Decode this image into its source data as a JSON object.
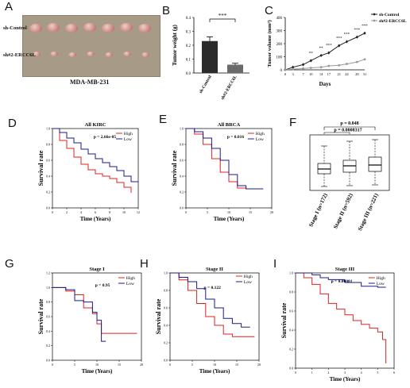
{
  "panels": {
    "A": {
      "letter": "A",
      "row_labels": [
        "sh-Control",
        "sh#2-ERCC6L"
      ],
      "caption": "MDA-MB-231"
    },
    "B": {
      "letter": "B",
      "significance": "***"
    },
    "C": {
      "letter": "C",
      "legend": [
        "sh-Control",
        "sh#2-ERCC6L"
      ],
      "significance": [
        "**",
        "**",
        "***",
        "***",
        "***",
        "***",
        "***"
      ]
    },
    "D": {
      "letter": "D"
    },
    "E": {
      "letter": "E"
    },
    "F": {
      "letter": "F",
      "pvals": [
        "p = 0.048",
        "p = 0.0008317"
      ]
    },
    "G": {
      "letter": "G"
    },
    "H": {
      "letter": "H"
    },
    "I": {
      "letter": "I"
    }
  },
  "chart_data": [
    {
      "id": "B",
      "type": "bar",
      "categories": [
        "sh-Control",
        "sh#2-ERCC6L"
      ],
      "values": [
        0.23,
        0.06
      ],
      "errors": [
        0.03,
        0.01
      ],
      "ylabel": "Tumor weight (g)",
      "ylim": [
        0,
        0.4
      ],
      "yticks": [
        "0.0",
        "0.1",
        "0.2",
        "0.3",
        "0.4"
      ],
      "colors": [
        "#2b2b2b",
        "#6b6b6b"
      ]
    },
    {
      "id": "C",
      "type": "line",
      "x": [
        0,
        3,
        7,
        10,
        14,
        17,
        21,
        24,
        28,
        31
      ],
      "xticklabels": [
        "0",
        "3",
        "7",
        "10",
        "14",
        "17",
        "21",
        "24",
        "28",
        "31"
      ],
      "series": [
        {
          "name": "sh-Control",
          "values": [
            0,
            20,
            40,
            70,
            110,
            130,
            185,
            215,
            250,
            280
          ],
          "color": "#222222"
        },
        {
          "name": "sh#2-ERCC6L",
          "values": [
            0,
            5,
            10,
            15,
            20,
            30,
            35,
            45,
            60,
            80
          ],
          "color": "#999999"
        }
      ],
      "xlabel": "Days",
      "ylabel": "Tumor volume (mm³)",
      "ylim": [
        0,
        400
      ],
      "yticks": [
        "0",
        "100",
        "200",
        "300",
        "400"
      ]
    },
    {
      "id": "D",
      "type": "line",
      "title": "All KIRC",
      "annotation": "p = 2.66e-05",
      "xlabel": "Time (Years)",
      "ylabel": "Survival rate",
      "xlim": [
        0,
        12
      ],
      "xticks": [
        "0",
        "2",
        "4",
        "6",
        "8",
        "10",
        "12"
      ],
      "ylim": [
        0,
        1
      ],
      "yticks": [
        "0.0",
        "0.2",
        "0.4",
        "0.6",
        "0.8",
        "1.0"
      ],
      "series": [
        {
          "name": "High",
          "color": "#e02020",
          "x": [
            0,
            1,
            2,
            3,
            4,
            5,
            6,
            7,
            8,
            9,
            10,
            11
          ],
          "values": [
            1,
            0.85,
            0.75,
            0.64,
            0.55,
            0.48,
            0.43,
            0.4,
            0.37,
            0.32,
            0.26,
            0.19
          ]
        },
        {
          "name": "Low",
          "color": "#1a1a8c",
          "x": [
            0,
            1,
            2,
            3,
            4,
            5,
            6,
            7,
            8,
            9,
            10,
            11,
            12
          ],
          "values": [
            1,
            0.95,
            0.88,
            0.82,
            0.74,
            0.68,
            0.62,
            0.57,
            0.52,
            0.47,
            0.4,
            0.33,
            0.33
          ]
        }
      ]
    },
    {
      "id": "E",
      "type": "line",
      "title": "All BRCA",
      "annotation": "p = 0.016",
      "xlabel": "Time (Years)",
      "ylabel": "Survival rate",
      "xlim": [
        0,
        20
      ],
      "xticks": [
        "0",
        "5",
        "10",
        "15",
        "20"
      ],
      "ylim": [
        0,
        1
      ],
      "yticks": [
        "0.0",
        "0.2",
        "0.4",
        "0.6",
        "0.8",
        "1.0"
      ],
      "series": [
        {
          "name": "High",
          "color": "#e02020",
          "x": [
            0,
            2,
            4,
            6,
            8,
            10,
            12,
            14,
            16,
            18
          ],
          "values": [
            1,
            0.93,
            0.8,
            0.62,
            0.45,
            0.33,
            0.25,
            0.24,
            0.24,
            0.24
          ]
        },
        {
          "name": "Low",
          "color": "#1a1a8c",
          "x": [
            0,
            2,
            4,
            6,
            8,
            10,
            12,
            14,
            16,
            18
          ],
          "values": [
            1,
            0.96,
            0.88,
            0.75,
            0.6,
            0.42,
            0.28,
            0.24,
            0.24,
            0.24
          ]
        }
      ]
    },
    {
      "id": "F",
      "type": "box",
      "categories": [
        "Stage I (n=172)",
        "Stage II (n=592)",
        "Stage III (n=221)"
      ],
      "boxes": [
        {
          "whisker_low": -2.5,
          "q1": -0.9,
          "median": -0.3,
          "q3": 0.4,
          "whisker_high": 2.6
        },
        {
          "whisker_low": -2.4,
          "q1": -0.7,
          "median": 0.1,
          "q3": 0.8,
          "whisker_high": 3.2
        },
        {
          "whisker_low": -2.3,
          "q1": -0.6,
          "median": 0.2,
          "q3": 1.2,
          "whisker_high": 3.4
        }
      ],
      "ylim": [
        -3,
        4
      ]
    },
    {
      "id": "G",
      "type": "line",
      "title": "Stage I",
      "annotation": "p = 0.95",
      "xlabel": "Time (Years)",
      "ylabel": "Survival rate",
      "xlim": [
        0,
        20
      ],
      "xticks": [
        "0",
        "5",
        "10",
        "15",
        "20"
      ],
      "ylim": [
        0,
        1.2
      ],
      "yticks": [
        "0.0",
        "0.2",
        "0.4",
        "0.6",
        "0.8",
        "1.0",
        "1.2"
      ],
      "series": [
        {
          "name": "High",
          "color": "#e02020",
          "x": [
            0,
            3,
            5,
            7,
            9,
            10,
            11,
            14,
            19
          ],
          "values": [
            1,
            0.95,
            0.9,
            0.72,
            0.64,
            0.5,
            0.37,
            0.37,
            0.37
          ]
        },
        {
          "name": "Low",
          "color": "#1a1a8c",
          "x": [
            0,
            3,
            5,
            7,
            9,
            10,
            11,
            12
          ],
          "values": [
            1,
            0.97,
            0.82,
            0.8,
            0.66,
            0.55,
            0.26,
            0.26
          ]
        }
      ]
    },
    {
      "id": "H",
      "type": "line",
      "title": "Stage II",
      "annotation": "p = 0.122",
      "xlabel": "Time (Years)",
      "ylabel": "Survival rate",
      "xlim": [
        0,
        20
      ],
      "xticks": [
        "0",
        "5",
        "10",
        "15",
        "20"
      ],
      "ylim": [
        0,
        1
      ],
      "yticks": [
        "0.0",
        "0.2",
        "0.4",
        "0.6",
        "0.8",
        "1.0"
      ],
      "series": [
        {
          "name": "High",
          "color": "#e02020",
          "x": [
            0,
            2,
            4,
            6,
            8,
            10,
            12,
            14,
            16,
            19
          ],
          "values": [
            1,
            0.92,
            0.8,
            0.65,
            0.5,
            0.4,
            0.3,
            0.27,
            0.27,
            0.27
          ]
        },
        {
          "name": "Low",
          "color": "#1a1a8c",
          "x": [
            0,
            2,
            4,
            6,
            8,
            10,
            12,
            14,
            16,
            18
          ],
          "values": [
            1,
            0.95,
            0.9,
            0.82,
            0.7,
            0.6,
            0.48,
            0.42,
            0.38,
            0.38
          ]
        }
      ]
    },
    {
      "id": "I",
      "type": "line",
      "title": "Stage III",
      "annotation": "p = 0.00081",
      "xlabel": "Time (Years)",
      "ylabel": "Survival rate",
      "xlim": [
        0,
        6
      ],
      "xticks": [
        "0",
        "1",
        "2",
        "3",
        "4",
        "5",
        "6"
      ],
      "ylim": [
        0,
        1
      ],
      "yticks": [
        "0.0",
        "0.2",
        "0.4",
        "0.6",
        "0.8",
        "1.0"
      ],
      "series": [
        {
          "name": "High",
          "color": "#e02020",
          "x": [
            0,
            0.5,
            1,
            1.5,
            2,
            2.5,
            3,
            3.5,
            4,
            4.5,
            5,
            5.3,
            5.5
          ],
          "values": [
            1,
            0.95,
            0.88,
            0.78,
            0.68,
            0.62,
            0.56,
            0.5,
            0.46,
            0.42,
            0.38,
            0.3,
            0.05
          ]
        },
        {
          "name": "Low",
          "color": "#1a1a8c",
          "x": [
            0,
            0.5,
            1,
            1.5,
            2,
            3,
            4,
            5,
            5.5
          ],
          "values": [
            1,
            1,
            0.98,
            0.95,
            0.93,
            0.9,
            0.86,
            0.85,
            0.85
          ]
        }
      ]
    }
  ]
}
